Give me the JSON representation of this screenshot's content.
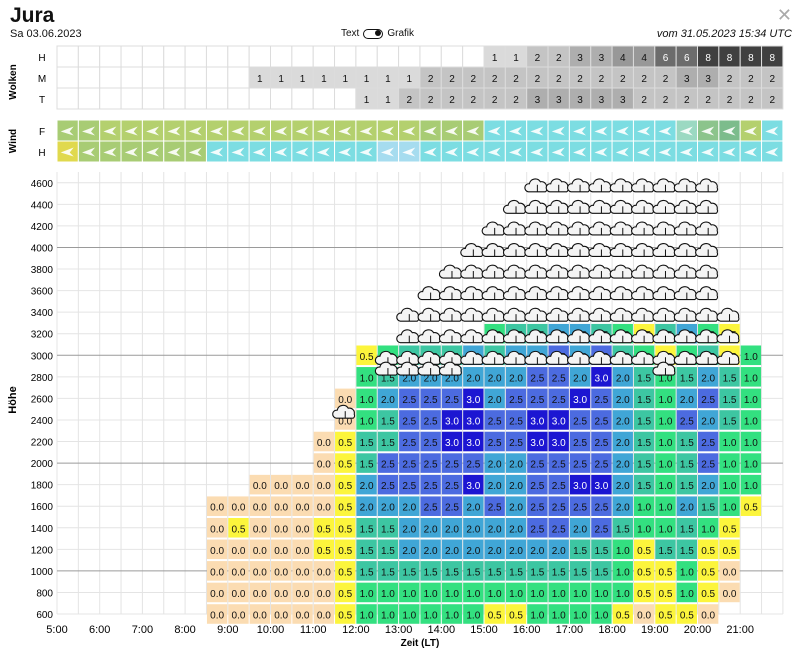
{
  "header": {
    "title": "Jura",
    "date": "Sa 03.06.2023",
    "toggle_left": "Text",
    "toggle_right": "Grafik",
    "updated": "vom 31.05.2023 15:34 UTC",
    "close_glyph": "✕"
  },
  "colors": {
    "v0.0": "#fbdcb2",
    "v0.5": "#fcf53c",
    "v1.0": "#33e080",
    "v1.5": "#3dc6a2",
    "v2.0": "#40a6d6",
    "v2.5": "#4c6be0",
    "v3.0": "#1c16d2",
    "grid": "#dddddd"
  },
  "chart_data": [
    {
      "name": "Wolken",
      "type": "table",
      "row_labels": [
        "H",
        "M",
        "T"
      ],
      "columns": 34,
      "rows": [
        [
          null,
          null,
          null,
          null,
          null,
          null,
          null,
          null,
          null,
          null,
          null,
          null,
          null,
          null,
          null,
          null,
          null,
          null,
          null,
          null,
          "1",
          "1",
          "2",
          "2",
          "3",
          "3",
          "4",
          "4",
          "6",
          "6",
          "8",
          "8",
          "8",
          "8"
        ],
        [
          null,
          null,
          null,
          null,
          null,
          null,
          null,
          null,
          null,
          "1",
          "1",
          "1",
          "1",
          "1",
          "1",
          "1",
          "1",
          "2",
          "2",
          "2",
          "2",
          "2",
          "2",
          "2",
          "2",
          "2",
          "2",
          "2",
          "2",
          "3",
          "3",
          "2",
          "2",
          "2"
        ],
        [
          null,
          null,
          null,
          null,
          null,
          null,
          null,
          null,
          null,
          null,
          null,
          null,
          null,
          null,
          "1",
          "1",
          "2",
          "2",
          "2",
          "2",
          "2",
          "2",
          "3",
          "3",
          "3",
          "3",
          "3",
          "2",
          "2",
          "2",
          "2",
          "2",
          "2",
          "2"
        ]
      ]
    },
    {
      "name": "Wind",
      "type": "table",
      "row_labels": [
        "F",
        "H"
      ],
      "columns": 34,
      "rows": [
        [
          "#a8cc74",
          "#a8cc74",
          "#b4d06e",
          "#b4d06e",
          "#b4d06e",
          "#b4d06e",
          "#b4d06e",
          "#b4d06e",
          "#b4d06e",
          "#b4d06e",
          "#b4d06e",
          "#b4d06e",
          "#b4d06e",
          "#b4d06e",
          "#b4d06e",
          "#b4d06e",
          "#b4d06e",
          "#a8cc74",
          "#a8cc74",
          "#a8cc74",
          "#7cdde2",
          "#7cdde2",
          "#7cdde2",
          "#7cdde2",
          "#7cdde2",
          "#7cdde2",
          "#7cdde2",
          "#7cdde2",
          "#7cdde2",
          "#9bd9c2",
          "#8cc48c",
          "#7cbc8c",
          "#b4d06e",
          "#7cdde2"
        ],
        [
          "#e0d94e",
          "#a8cc74",
          "#a8cc74",
          "#a8cc74",
          "#a8cc74",
          "#a8cc74",
          "#a8cc74",
          "#7cdde2",
          "#7cdde2",
          "#7cdde2",
          "#7cdde2",
          "#7cdde2",
          "#7cdde2",
          "#7cdde2",
          "#7cdde2",
          "#a6dcef",
          "#a6dcef",
          "#7cdde2",
          "#7cdde2",
          "#7cdde2",
          "#7cdde2",
          "#7cdde2",
          "#7cdde2",
          "#7cdde2",
          "#7cdde2",
          "#7cdde2",
          "#7cdde2",
          "#7cdde2",
          "#7cdde2",
          "#7cdde2",
          "#7cdde2",
          "#7cdde2",
          "#7cdde2",
          "#7cdde2"
        ]
      ]
    },
    {
      "name": "Thermik",
      "type": "heatmap",
      "xlabel": "Zeit (LT)",
      "ylabel": "Höhe",
      "x_ticks": [
        "5:00",
        "6:00",
        "7:00",
        "8:00",
        "9:00",
        "10:00",
        "11:00",
        "12:00",
        "13:00",
        "14:00",
        "15:00",
        "16:00",
        "17:00",
        "18:00",
        "19:00",
        "20:00",
        "21:00"
      ],
      "y_ticks": [
        "600",
        "800",
        "1000",
        "1200",
        "1400",
        "1600",
        "1800",
        "2000",
        "2200",
        "2400",
        "2600",
        "2800",
        "3000",
        "3200",
        "3400",
        "3600",
        "3800",
        "4000",
        "4200",
        "4400",
        "4600"
      ],
      "y_levels": [
        600,
        700,
        800,
        900,
        1000,
        1100,
        1200,
        1300,
        1400,
        1500,
        1600,
        1700,
        1800,
        1900,
        2000,
        2100,
        2200,
        2300,
        2400,
        2500,
        2600,
        2700,
        2800,
        2900,
        3000,
        3100,
        3200,
        3300,
        3400,
        3500,
        3600,
        3700,
        3800,
        3900,
        4000,
        4100,
        4200,
        4300,
        4400,
        4500,
        4600
      ],
      "x_start_col": 0,
      "col_count": 34,
      "cells": [
        [
          null,
          null,
          null,
          null,
          null,
          null,
          null,
          "0.0",
          "0.0",
          "0.0",
          "0.0",
          "0.0",
          "0.0",
          "0.5",
          "1.0",
          "1.0",
          "1.0",
          "1.0",
          "1.0",
          "1.0",
          "0.5",
          "0.5",
          "1.0",
          "1.0",
          "1.0",
          "1.0",
          "0.5",
          "0.0",
          "0.5",
          "0.5",
          "0.0",
          null,
          null,
          null
        ],
        [
          null,
          null,
          null,
          null,
          null,
          null,
          null,
          "0.0",
          "0.0",
          "0.0",
          "0.0",
          "0.0",
          "0.0",
          "0.5",
          "1.0",
          "1.0",
          "1.0",
          "1.0",
          "1.0",
          "1.0",
          "1.0",
          "1.0",
          "1.0",
          "1.0",
          "1.0",
          "1.0",
          "1.0",
          "0.5",
          "0.5",
          "1.0",
          "0.5",
          "0.0",
          null,
          null
        ],
        [
          null,
          null,
          null,
          null,
          null,
          null,
          null,
          "0.0",
          "0.0",
          "0.0",
          "0.0",
          "0.0",
          "0.0",
          "0.5",
          "1.5",
          "1.5",
          "1.5",
          "1.5",
          "1.5",
          "1.5",
          "1.5",
          "1.5",
          "1.5",
          "1.5",
          "1.5",
          "1.5",
          "1.0",
          "0.5",
          "0.5",
          "1.0",
          "0.5",
          "0.0",
          null,
          null
        ],
        [
          null,
          null,
          null,
          null,
          null,
          null,
          null,
          "0.0",
          "0.0",
          "0.0",
          "0.0",
          "0.0",
          "0.5",
          "0.5",
          "1.5",
          "1.5",
          "2.0",
          "2.0",
          "2.0",
          "2.0",
          "2.0",
          "2.0",
          "2.0",
          "2.0",
          "1.5",
          "1.5",
          "1.0",
          "0.5",
          "1.5",
          "1.5",
          "0.5",
          "0.5",
          null,
          null
        ],
        [
          null,
          null,
          null,
          null,
          null,
          null,
          null,
          "0.0",
          "0.5",
          "0.0",
          "0.0",
          "0.0",
          "0.5",
          "0.5",
          "1.5",
          "1.5",
          "2.0",
          "2.0",
          "2.0",
          "2.0",
          "2.0",
          "2.0",
          "2.5",
          "2.5",
          "2.0",
          "2.5",
          "1.5",
          "1.0",
          "1.0",
          "1.5",
          "1.0",
          "0.5",
          null,
          null
        ],
        [
          null,
          null,
          null,
          null,
          null,
          null,
          null,
          "0.0",
          "0.0",
          "0.0",
          "0.0",
          "0.0",
          "0.0",
          "0.5",
          "2.0",
          "2.0",
          "2.0",
          "2.5",
          "2.5",
          "2.0",
          "2.5",
          "2.0",
          "2.5",
          "2.5",
          "2.5",
          "2.5",
          "2.0",
          "1.0",
          "1.0",
          "2.0",
          "1.5",
          "1.0",
          "0.5",
          null
        ],
        [
          null,
          null,
          null,
          null,
          null,
          null,
          null,
          null,
          null,
          "0.0",
          "0.0",
          "0.0",
          "0.0",
          "0.5",
          "2.0",
          "2.5",
          "2.5",
          "2.5",
          "2.5",
          "3.0",
          "2.0",
          "2.0",
          "2.5",
          "2.5",
          "3.0",
          "3.0",
          "2.0",
          "1.5",
          "1.0",
          "1.5",
          "2.0",
          "1.0",
          "1.0",
          null
        ],
        [
          null,
          null,
          null,
          null,
          null,
          null,
          null,
          null,
          null,
          null,
          null,
          null,
          "0.0",
          "0.5",
          "1.5",
          "2.5",
          "2.5",
          "2.5",
          "2.5",
          "2.5",
          "2.0",
          "2.0",
          "2.5",
          "2.5",
          "2.5",
          "2.5",
          "2.0",
          "1.5",
          "1.0",
          "1.5",
          "2.5",
          "1.0",
          "1.0",
          null
        ],
        [
          null,
          null,
          null,
          null,
          null,
          null,
          null,
          null,
          null,
          null,
          null,
          null,
          "0.0",
          "0.5",
          "1.5",
          "1.5",
          "2.5",
          "2.5",
          "3.0",
          "3.0",
          "2.5",
          "2.5",
          "3.0",
          "3.0",
          "2.5",
          "2.5",
          "2.0",
          "1.5",
          "1.0",
          "1.5",
          "2.5",
          "1.0",
          "1.0",
          null
        ],
        [
          null,
          null,
          null,
          null,
          null,
          null,
          null,
          null,
          null,
          null,
          null,
          null,
          null,
          "0.0",
          "1.0",
          "1.5",
          "2.5",
          "2.5",
          "3.0",
          "3.0",
          "2.5",
          "2.5",
          "3.0",
          "3.0",
          "2.5",
          "2.5",
          "2.0",
          "1.5",
          "1.0",
          "2.5",
          "2.0",
          "1.5",
          "1.0",
          null
        ],
        [
          null,
          null,
          null,
          null,
          null,
          null,
          null,
          null,
          null,
          null,
          null,
          null,
          null,
          "0.0",
          "1.0",
          "2.0",
          "2.5",
          "2.5",
          "2.5",
          "3.0",
          "2.0",
          "2.5",
          "2.5",
          "2.5",
          "3.0",
          "2.5",
          "2.0",
          "1.5",
          "1.0",
          "2.0",
          "2.5",
          "1.5",
          "1.0",
          null
        ],
        [
          null,
          null,
          null,
          null,
          null,
          null,
          null,
          null,
          null,
          null,
          null,
          null,
          null,
          null,
          "1.0",
          "1.5",
          "2.0",
          "2.0",
          "2.0",
          "2.0",
          "2.0",
          "2.0",
          "2.5",
          "2.5",
          "2.0",
          "3.0",
          "2.0",
          "1.5",
          "1.0",
          "1.5",
          "2.0",
          "1.5",
          "1.0",
          null
        ],
        [
          null,
          null,
          null,
          null,
          null,
          null,
          null,
          null,
          null,
          null,
          null,
          null,
          null,
          null,
          "0.5",
          "1.0",
          "1.5",
          "1.5",
          "1.5",
          "2.0",
          "1.5",
          "2.0",
          "2.0",
          "2.5",
          "2.0",
          "2.5",
          "1.5",
          "1.0",
          "0.5",
          "1.0",
          "1.5",
          "0.5",
          "1.0",
          null
        ],
        [
          null,
          null,
          null,
          null,
          null,
          null,
          null,
          null,
          null,
          null,
          null,
          null,
          null,
          null,
          null,
          null,
          null,
          null,
          null,
          null,
          "1.0",
          "1.5",
          "1.5",
          "2.0",
          "2.0",
          "1.5",
          "1.0",
          "0.5",
          "1.5",
          "2.0",
          "1.0",
          "0.5",
          null,
          null
        ]
      ],
      "cloud_cells": [
        [
          31,
          32,
          33
        ],
        [
          31,
          32,
          33
        ],
        [
          32,
          33,
          34
        ],
        [
          32,
          33,
          34
        ],
        [
          32,
          33,
          34
        ],
        [
          32,
          33,
          34
        ],
        [
          32,
          33,
          34
        ],
        [
          32,
          33,
          34
        ],
        [
          32,
          33,
          34
        ],
        [
          32,
          33,
          34
        ],
        [
          32,
          33,
          34
        ],
        [
          32,
          33,
          34
        ],
        [
          32,
          33,
          34
        ],
        [
          32,
          33,
          34
        ],
        [
          32,
          33,
          34
        ],
        [
          32,
          33,
          34
        ],
        [
          32,
          33,
          34
        ],
        [
          32,
          33,
          34
        ],
        [
          32,
          33,
          34
        ],
        [
          32,
          33,
          34
        ],
        [
          32,
          33,
          34
        ],
        [
          32,
          33,
          34
        ],
        [
          32,
          33,
          34
        ],
        [
          32,
          33,
          34
        ],
        [
          32,
          33,
          34
        ],
        [
          32,
          33,
          34
        ],
        [
          32,
          33,
          34
        ],
        [
          32,
          33,
          34
        ],
        [
          32,
          33,
          34
        ],
        [
          32,
          33,
          34
        ],
        [
          32,
          33,
          34
        ],
        [
          32,
          33,
          34
        ],
        [
          32,
          33,
          34
        ],
        [
          32,
          33,
          34
        ]
      ]
    }
  ]
}
